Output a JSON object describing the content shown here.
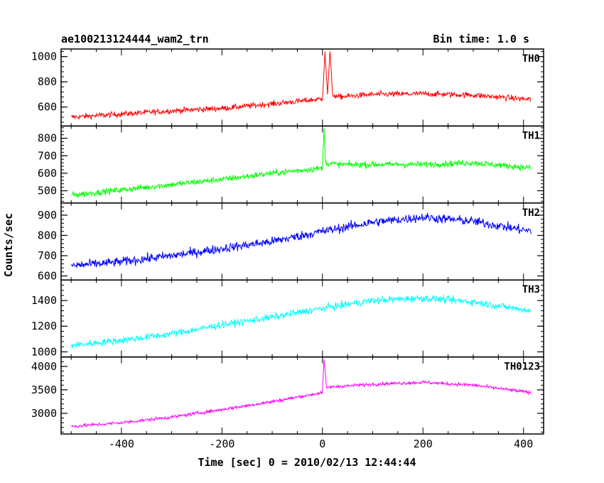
{
  "chart_data": {
    "type": "line",
    "title_left": "ae100213124444_wam2_trn",
    "title_right": "Bin time: 1.0 s",
    "xlabel": "Time [sec] 0 = 2010/02/13 12:44:44",
    "ylabel": "Counts/sec",
    "xlim": [
      -520,
      440
    ],
    "x_ticks": [
      -400,
      -200,
      0,
      200,
      400
    ],
    "x_range_data": [
      -500,
      415
    ],
    "series": [
      {
        "name": "TH0",
        "color": "#ff0000",
        "ylim": [
          450,
          1060
        ],
        "y_ticks": [
          600,
          800,
          1000
        ],
        "x": [
          -500,
          -400,
          -300,
          -200,
          -100,
          0,
          5,
          10,
          15,
          20,
          30,
          100,
          200,
          300,
          415
        ],
        "y": [
          520,
          545,
          570,
          590,
          625,
          665,
          1040,
          700,
          1040,
          700,
          680,
          700,
          705,
          695,
          660
        ],
        "noise": 45
      },
      {
        "name": "TH1",
        "color": "#00ff00",
        "ylim": [
          430,
          870
        ],
        "y_ticks": [
          500,
          600,
          700,
          800
        ],
        "x": [
          -500,
          -400,
          -300,
          -200,
          -100,
          0,
          3,
          6,
          30,
          100,
          200,
          300,
          415
        ],
        "y": [
          475,
          505,
          535,
          565,
          600,
          630,
          860,
          660,
          650,
          650,
          650,
          660,
          630
        ],
        "noise": 35
      },
      {
        "name": "TH2",
        "color": "#0000ff",
        "ylim": [
          580,
          960
        ],
        "y_ticks": [
          600,
          700,
          800,
          900
        ],
        "x": [
          -500,
          -400,
          -300,
          -200,
          -100,
          0,
          100,
          200,
          300,
          415
        ],
        "y": [
          650,
          670,
          700,
          735,
          770,
          820,
          865,
          890,
          870,
          820
        ],
        "noise": 45
      },
      {
        "name": "TH3",
        "color": "#00ffff",
        "ylim": [
          960,
          1560
        ],
        "y_ticks": [
          1000,
          1200,
          1400
        ],
        "x": [
          -500,
          -400,
          -300,
          -200,
          -100,
          0,
          100,
          200,
          300,
          415
        ],
        "y": [
          1050,
          1090,
          1140,
          1210,
          1270,
          1340,
          1400,
          1420,
          1390,
          1320
        ],
        "noise": 55
      },
      {
        "name": "TH0123",
        "color": "#ff00ff",
        "ylim": [
          2560,
          4200
        ],
        "y_ticks": [
          3000,
          3500,
          4000
        ],
        "x": [
          -500,
          -400,
          -300,
          -200,
          -100,
          0,
          3,
          8,
          15,
          100,
          200,
          300,
          415
        ],
        "y": [
          2720,
          2800,
          2920,
          3080,
          3250,
          3440,
          4150,
          3550,
          3560,
          3620,
          3660,
          3600,
          3440
        ],
        "noise": 70
      }
    ]
  }
}
